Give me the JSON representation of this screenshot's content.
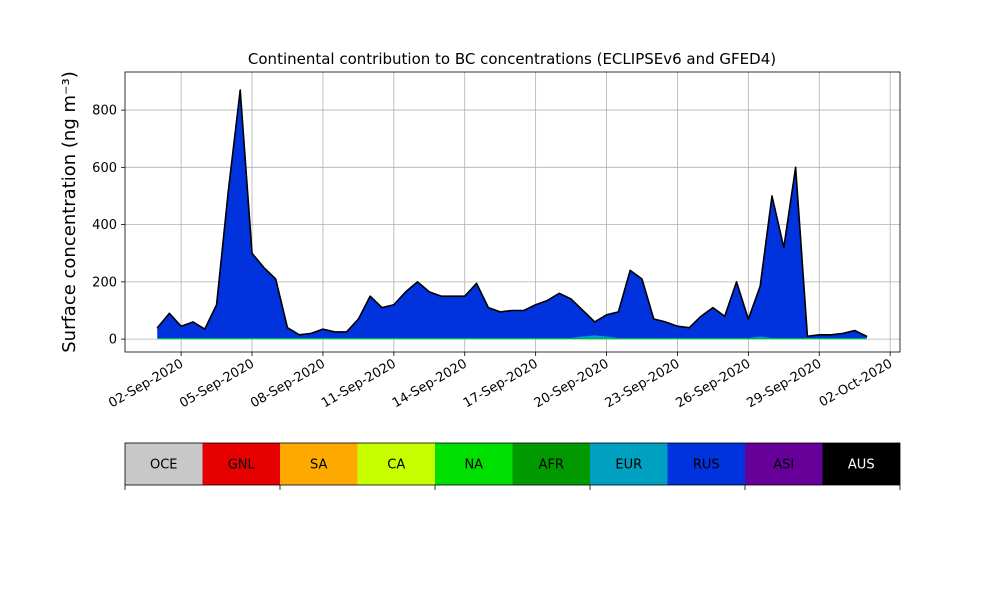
{
  "chart_data": {
    "type": "stacked_area",
    "title": "Continental contribution to BC concentrations (ECLIPSEv6 and GFED4)",
    "y_label": "Surface concentration (ng m⁻³)",
    "x": [
      "2020-09-01 00:00",
      "2020-09-01 12:00",
      "2020-09-02 00:00",
      "2020-09-02 12:00",
      "2020-09-03 00:00",
      "2020-09-03 12:00",
      "2020-09-04 00:00",
      "2020-09-04 12:00",
      "2020-09-05 00:00",
      "2020-09-05 12:00",
      "2020-09-06 00:00",
      "2020-09-06 12:00",
      "2020-09-07 00:00",
      "2020-09-07 12:00",
      "2020-09-08 00:00",
      "2020-09-08 12:00",
      "2020-09-09 00:00",
      "2020-09-09 12:00",
      "2020-09-10 00:00",
      "2020-09-10 12:00",
      "2020-09-11 00:00",
      "2020-09-11 12:00",
      "2020-09-12 00:00",
      "2020-09-12 12:00",
      "2020-09-13 00:00",
      "2020-09-13 12:00",
      "2020-09-14 00:00",
      "2020-09-14 12:00",
      "2020-09-15 00:00",
      "2020-09-15 12:00",
      "2020-09-16 00:00",
      "2020-09-16 12:00",
      "2020-09-17 00:00",
      "2020-09-17 12:00",
      "2020-09-18 00:00",
      "2020-09-18 12:00",
      "2020-09-19 00:00",
      "2020-09-19 12:00",
      "2020-09-20 00:00",
      "2020-09-20 12:00",
      "2020-09-21 00:00",
      "2020-09-21 12:00",
      "2020-09-22 00:00",
      "2020-09-22 12:00",
      "2020-09-23 00:00",
      "2020-09-23 12:00",
      "2020-09-24 00:00",
      "2020-09-24 12:00",
      "2020-09-25 00:00",
      "2020-09-25 12:00",
      "2020-09-26 00:00",
      "2020-09-26 12:00",
      "2020-09-27 00:00",
      "2020-09-27 12:00",
      "2020-09-28 00:00",
      "2020-09-28 12:00",
      "2020-09-29 00:00",
      "2020-09-29 12:00",
      "2020-09-30 00:00",
      "2020-09-30 12:00",
      "2020-10-01 00:00"
    ],
    "series": [
      {
        "name": "OCE",
        "color": "#c8c8c8",
        "values": [
          0,
          0,
          0,
          0,
          0,
          0,
          0,
          0,
          0,
          0,
          0,
          0,
          0,
          0,
          0,
          0,
          0,
          0,
          0,
          0,
          0,
          0,
          0,
          0,
          0,
          0,
          0,
          0,
          0,
          0,
          0,
          0,
          0,
          0,
          0,
          0,
          0,
          0,
          0,
          0,
          0,
          0,
          0,
          0,
          0,
          0,
          0,
          0,
          0,
          0,
          0,
          0,
          0,
          0,
          0,
          0,
          0,
          0,
          0,
          0,
          0
        ]
      },
      {
        "name": "GNL",
        "color": "#e60000",
        "values": [
          0,
          0,
          0,
          0,
          0,
          0,
          0,
          0,
          0,
          0,
          0,
          0,
          0,
          0,
          0,
          0,
          0,
          0,
          0,
          0,
          0,
          0,
          0,
          0,
          0,
          0,
          0,
          0,
          0,
          0,
          0,
          0,
          0,
          0,
          0,
          0,
          0,
          0,
          0,
          0,
          0,
          0,
          0,
          0,
          0,
          0,
          0,
          0,
          0,
          0,
          0,
          0,
          0,
          0,
          0,
          0,
          0,
          0,
          0,
          0,
          0
        ]
      },
      {
        "name": "SA",
        "color": "#ffaa00",
        "values": [
          0,
          0,
          0,
          0,
          0,
          0,
          0,
          0,
          0,
          0,
          0,
          0,
          0,
          0,
          0,
          0,
          0,
          0,
          0,
          0,
          0,
          0,
          0,
          0,
          0,
          0,
          0,
          0,
          0,
          0,
          0,
          0,
          0,
          0,
          0,
          0,
          0,
          0,
          0,
          0,
          0,
          0,
          0,
          0,
          0,
          0,
          0,
          0,
          0,
          0,
          0,
          0,
          0,
          0,
          0,
          0,
          0,
          0,
          0,
          0,
          0
        ]
      },
      {
        "name": "CA",
        "color": "#c8ff00",
        "values": [
          0,
          0,
          0,
          0,
          0,
          0,
          0,
          0,
          0,
          0,
          0,
          0,
          0,
          0,
          0,
          0,
          0,
          0,
          0,
          0,
          0,
          0,
          0,
          0,
          0,
          0,
          0,
          0,
          0,
          0,
          0,
          0,
          0,
          0,
          0,
          0,
          0,
          0,
          0,
          0,
          0,
          0,
          0,
          0,
          0,
          0,
          0,
          0,
          0,
          0,
          0,
          0,
          0,
          0,
          0,
          0,
          0,
          0,
          0,
          0,
          0
        ]
      },
      {
        "name": "NA",
        "color": "#00e000",
        "values": [
          2,
          2,
          2,
          2,
          2,
          2,
          2,
          2,
          2,
          2,
          2,
          2,
          2,
          2,
          2,
          2,
          2,
          2,
          2,
          2,
          2,
          2,
          2,
          2,
          2,
          2,
          2,
          2,
          2,
          2,
          2,
          2,
          2,
          2,
          2,
          2,
          2,
          2,
          2,
          2,
          2,
          2,
          2,
          2,
          2,
          2,
          2,
          2,
          2,
          2,
          2,
          2,
          2,
          2,
          2,
          2,
          2,
          2,
          2,
          2,
          2
        ]
      },
      {
        "name": "AFR",
        "color": "#009900",
        "values": [
          0,
          0,
          0,
          0,
          0,
          0,
          0,
          0,
          0,
          0,
          0,
          0,
          0,
          0,
          0,
          0,
          0,
          0,
          0,
          0,
          0,
          0,
          0,
          0,
          0,
          0,
          0,
          0,
          0,
          0,
          0,
          0,
          0,
          0,
          0,
          0,
          0,
          0,
          0,
          0,
          0,
          0,
          0,
          0,
          0,
          0,
          0,
          0,
          0,
          0,
          0,
          0,
          0,
          0,
          0,
          0,
          0,
          0,
          0,
          0,
          0
        ]
      },
      {
        "name": "EUR",
        "color": "#00a0c0",
        "values": [
          3,
          3,
          3,
          3,
          3,
          3,
          3,
          3,
          3,
          3,
          3,
          3,
          3,
          3,
          3,
          3,
          3,
          3,
          3,
          3,
          3,
          3,
          3,
          3,
          3,
          3,
          3,
          3,
          3,
          3,
          3,
          3,
          3,
          3,
          3,
          3,
          8,
          12,
          8,
          3,
          3,
          3,
          3,
          3,
          3,
          3,
          3,
          3,
          3,
          3,
          3,
          8,
          3,
          3,
          3,
          3,
          3,
          3,
          3,
          3,
          3
        ]
      },
      {
        "name": "RUS",
        "color": "#0033dd",
        "values": [
          35,
          85,
          40,
          55,
          30,
          115,
          515,
          865,
          295,
          245,
          205,
          35,
          10,
          15,
          30,
          20,
          20,
          65,
          145,
          105,
          115,
          160,
          195,
          160,
          145,
          145,
          145,
          190,
          105,
          90,
          95,
          95,
          115,
          130,
          155,
          135,
          90,
          46,
          75,
          90,
          235,
          205,
          65,
          55,
          40,
          35,
          75,
          105,
          75,
          195,
          65,
          175,
          495,
          315,
          595,
          5,
          10,
          10,
          15,
          25,
          5
        ]
      },
      {
        "name": "ASI",
        "color": "#660099",
        "values": [
          0,
          0,
          0,
          0,
          0,
          0,
          0,
          0,
          0,
          0,
          0,
          0,
          0,
          0,
          0,
          0,
          0,
          0,
          0,
          0,
          0,
          0,
          0,
          0,
          0,
          0,
          0,
          0,
          0,
          0,
          0,
          0,
          0,
          0,
          0,
          0,
          0,
          0,
          0,
          0,
          0,
          0,
          0,
          0,
          0,
          0,
          0,
          0,
          0,
          0,
          0,
          0,
          0,
          0,
          0,
          0,
          0,
          0,
          0,
          0,
          0
        ]
      },
      {
        "name": "AUS",
        "color": "#000000",
        "values": [
          0,
          0,
          0,
          0,
          0,
          0,
          0,
          0,
          0,
          0,
          0,
          0,
          0,
          0,
          0,
          0,
          0,
          0,
          0,
          0,
          0,
          0,
          0,
          0,
          0,
          0,
          0,
          0,
          0,
          0,
          0,
          0,
          0,
          0,
          0,
          0,
          0,
          0,
          0,
          0,
          0,
          0,
          0,
          0,
          0,
          0,
          0,
          0,
          0,
          0,
          0,
          0,
          0,
          0,
          0,
          0,
          0,
          0,
          0,
          0,
          0
        ]
      }
    ],
    "xlim": [
      "2020-08-30 15:00",
      "2020-10-02 10:00"
    ],
    "xticks": [
      {
        "value": "2020-09-02 00:00",
        "label": "02-Sep-2020"
      },
      {
        "value": "2020-09-05 00:00",
        "label": "05-Sep-2020"
      },
      {
        "value": "2020-09-08 00:00",
        "label": "08-Sep-2020"
      },
      {
        "value": "2020-09-11 00:00",
        "label": "11-Sep-2020"
      },
      {
        "value": "2020-09-14 00:00",
        "label": "14-Sep-2020"
      },
      {
        "value": "2020-09-17 00:00",
        "label": "17-Sep-2020"
      },
      {
        "value": "2020-09-20 00:00",
        "label": "20-Sep-2020"
      },
      {
        "value": "2020-09-23 00:00",
        "label": "23-Sep-2020"
      },
      {
        "value": "2020-09-26 00:00",
        "label": "26-Sep-2020"
      },
      {
        "value": "2020-09-29 00:00",
        "label": "29-Sep-2020"
      },
      {
        "value": "2020-10-02 00:00",
        "label": "02-Oct-2020"
      }
    ],
    "ylim": [
      -45,
      933
    ],
    "yticks": [
      0,
      200,
      400,
      600,
      800
    ],
    "grid": true,
    "legend": "bottom"
  }
}
